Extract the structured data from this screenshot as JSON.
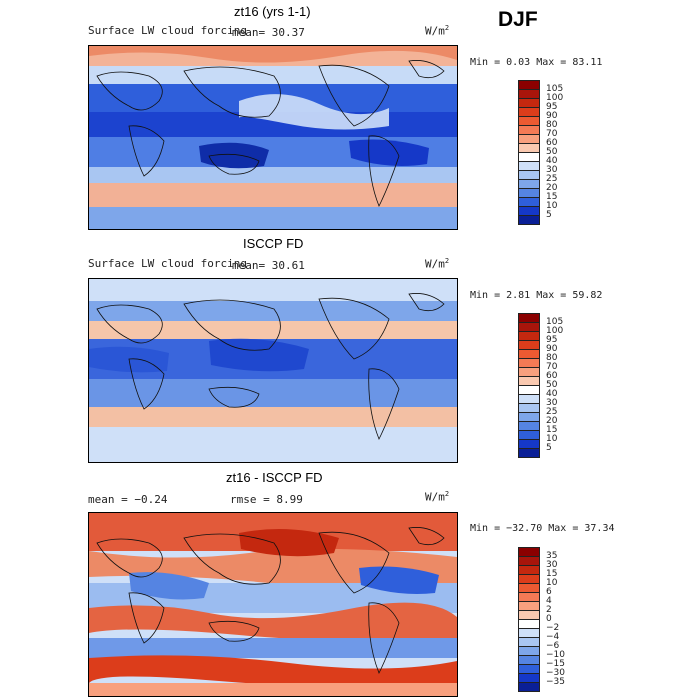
{
  "season": "DJF",
  "panels": [
    {
      "title": "zt16 (yrs 1-1)",
      "field_label": "Surface LW cloud forcing",
      "mean_text": "mean=  30.37",
      "units": "W/m",
      "units_sup": "2",
      "minmax_text": "Min =   0.03 Max =  83.11",
      "colorbar": {
        "labels": [
          "105",
          "100",
          "95",
          "90",
          "80",
          "70",
          "60",
          "50",
          "40",
          "30",
          "25",
          "20",
          "15",
          "10",
          "5"
        ],
        "colors": [
          "#8b0000",
          "#a8150b",
          "#c4280f",
          "#dc3d1b",
          "#ec5a32",
          "#f47a55",
          "#f8a07e",
          "#fac9b0",
          "#ffffff",
          "#cfe0f8",
          "#a9c6f2",
          "#7ea6ea",
          "#5584e2",
          "#2f5fdb",
          "#1538c8",
          "#0a1f96"
        ]
      }
    },
    {
      "title": "ISCCP FD",
      "field_label": "Surface LW cloud forcing",
      "mean_text": "mean=  30.61",
      "units": "W/m",
      "units_sup": "2",
      "minmax_text": "Min =   2.81 Max =  59.82",
      "colorbar": {
        "labels": [
          "105",
          "100",
          "95",
          "90",
          "80",
          "70",
          "60",
          "50",
          "40",
          "30",
          "25",
          "20",
          "15",
          "10",
          "5"
        ],
        "colors": [
          "#8b0000",
          "#a8150b",
          "#c4280f",
          "#dc3d1b",
          "#ec5a32",
          "#f47a55",
          "#f8a07e",
          "#fac9b0",
          "#ffffff",
          "#cfe0f8",
          "#a9c6f2",
          "#7ea6ea",
          "#5584e2",
          "#2f5fdb",
          "#1538c8",
          "#0a1f96"
        ]
      }
    },
    {
      "title": "zt16 - ISCCP FD",
      "mean_text": "mean =  −0.24",
      "rmse_text": "rmse =   8.99",
      "units": "W/m",
      "units_sup": "2",
      "minmax_text": "Min = −32.70 Max =  37.34",
      "colorbar": {
        "labels": [
          "35",
          "30",
          "15",
          "10",
          "6",
          "4",
          "2",
          "0",
          "−2",
          "−4",
          "−6",
          "−10",
          "−15",
          "−30",
          "−35"
        ],
        "colors": [
          "#8b0000",
          "#a8150b",
          "#c4280f",
          "#dc3d1b",
          "#ec5a32",
          "#f47a55",
          "#f8a07e",
          "#fac9b0",
          "#ffffff",
          "#cfe0f8",
          "#a9c6f2",
          "#7ea6ea",
          "#5584e2",
          "#2f5fdb",
          "#1538c8",
          "#0a1f96"
        ]
      }
    }
  ]
}
